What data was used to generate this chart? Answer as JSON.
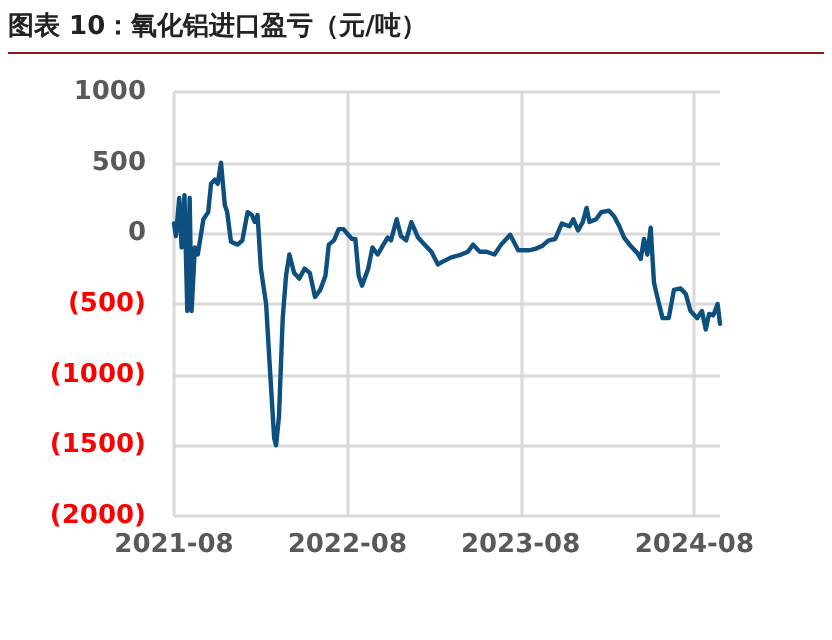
{
  "chart_data": {
    "type": "line",
    "title": "图表 10：氧化铝进口盈亏（元/吨）",
    "series": [
      {
        "color": "#0d4f7e",
        "x": [
          "2021-08-01",
          "2021-08-05",
          "2021-08-12",
          "2021-08-17",
          "2021-08-23",
          "2021-08-29",
          "2021-09-03",
          "2021-09-07",
          "2021-09-14",
          "2021-09-20",
          "2021-10-02",
          "2021-10-12",
          "2021-10-18",
          "2021-10-26",
          "2021-11-01",
          "2021-11-08",
          "2021-11-16",
          "2021-11-21",
          "2021-11-29",
          "2021-12-13",
          "2021-12-23",
          "2022-01-03",
          "2022-01-12",
          "2022-01-18",
          "2022-01-24",
          "2022-01-31",
          "2022-02-11",
          "2022-02-18",
          "2022-02-28",
          "2022-03-04",
          "2022-03-10",
          "2022-03-18",
          "2022-03-25",
          "2022-04-01",
          "2022-04-11",
          "2022-04-22",
          "2022-05-03",
          "2022-05-14",
          "2022-05-25",
          "2022-06-05",
          "2022-06-16",
          "2022-06-23",
          "2022-07-04",
          "2022-07-14",
          "2022-07-24",
          "2022-08-03",
          "2022-08-11",
          "2022-08-18",
          "2022-08-25",
          "2022-09-01",
          "2022-09-14",
          "2022-09-23",
          "2022-10-04",
          "2022-10-16",
          "2022-10-25",
          "2022-11-01",
          "2022-11-13",
          "2022-11-22",
          "2022-12-03",
          "2022-12-14",
          "2022-12-28",
          "2023-01-11",
          "2023-01-25",
          "2023-02-08",
          "2023-02-18",
          "2023-03-08",
          "2023-03-29",
          "2023-04-12",
          "2023-04-23",
          "2023-05-07",
          "2023-05-21",
          "2023-06-07",
          "2023-06-21",
          "2023-07-10",
          "2023-07-27",
          "2023-08-18",
          "2023-09-01",
          "2023-09-15",
          "2023-09-29",
          "2023-10-13",
          "2023-10-27",
          "2023-11-03",
          "2023-11-12",
          "2023-11-20",
          "2023-11-30",
          "2023-12-10",
          "2023-12-18",
          "2023-12-24",
          "2024-01-07",
          "2024-01-18",
          "2024-02-03",
          "2024-02-14",
          "2024-02-25",
          "2024-03-06",
          "2024-03-20",
          "2024-04-03",
          "2024-04-10",
          "2024-04-17",
          "2024-04-24",
          "2024-05-01",
          "2024-05-08",
          "2024-05-15",
          "2024-05-26",
          "2024-06-08",
          "2024-06-19",
          "2024-07-03",
          "2024-07-14",
          "2024-07-24",
          "2024-08-07",
          "2024-08-17",
          "2024-08-25",
          "2024-09-01",
          "2024-09-10",
          "2024-09-19",
          "2024-09-24"
        ],
        "values": [
          70,
          -20,
          250,
          -100,
          270,
          -550,
          250,
          -550,
          -100,
          -150,
          100,
          150,
          350,
          380,
          350,
          500,
          200,
          150,
          -60,
          -80,
          -50,
          150,
          130,
          80,
          130,
          -250,
          -500,
          -900,
          -1450,
          -1500,
          -1300,
          -600,
          -300,
          -150,
          -280,
          -320,
          -250,
          -280,
          -450,
          -400,
          -300,
          -80,
          -50,
          30,
          30,
          -10,
          -40,
          -40,
          -300,
          -370,
          -250,
          -100,
          -150,
          -80,
          -30,
          -50,
          100,
          -20,
          -50,
          80,
          -30,
          -80,
          -130,
          -220,
          -200,
          -170,
          -150,
          -130,
          -80,
          -130,
          -130,
          -150,
          -80,
          -10,
          -120,
          -120,
          -110,
          -90,
          -50,
          -40,
          70,
          60,
          50,
          100,
          20,
          80,
          180,
          80,
          100,
          150,
          160,
          120,
          50,
          -30,
          -90,
          -140,
          -180,
          -40,
          -150,
          40,
          -350,
          -450,
          -600,
          -600,
          -400,
          -390,
          -430,
          -550,
          -600,
          -550,
          -680,
          -570,
          -580,
          -500,
          -640
        ]
      }
    ],
    "xlim": [
      "2021-08-01",
      "2024-09-24"
    ],
    "xticks": [
      "2021-08",
      "2022-08",
      "2023-08",
      "2024-08"
    ],
    "ylim": [
      -2000,
      1000
    ],
    "yticks": [
      {
        "value": -2000,
        "label": "(2000)"
      },
      {
        "value": -1500,
        "label": "(1500)"
      },
      {
        "value": -1000,
        "label": "(1000)"
      },
      {
        "value": -500,
        "label": "(500)"
      },
      0,
      500,
      1000
    ],
    "grid": true,
    "marker": "none",
    "line_style": "solid"
  }
}
